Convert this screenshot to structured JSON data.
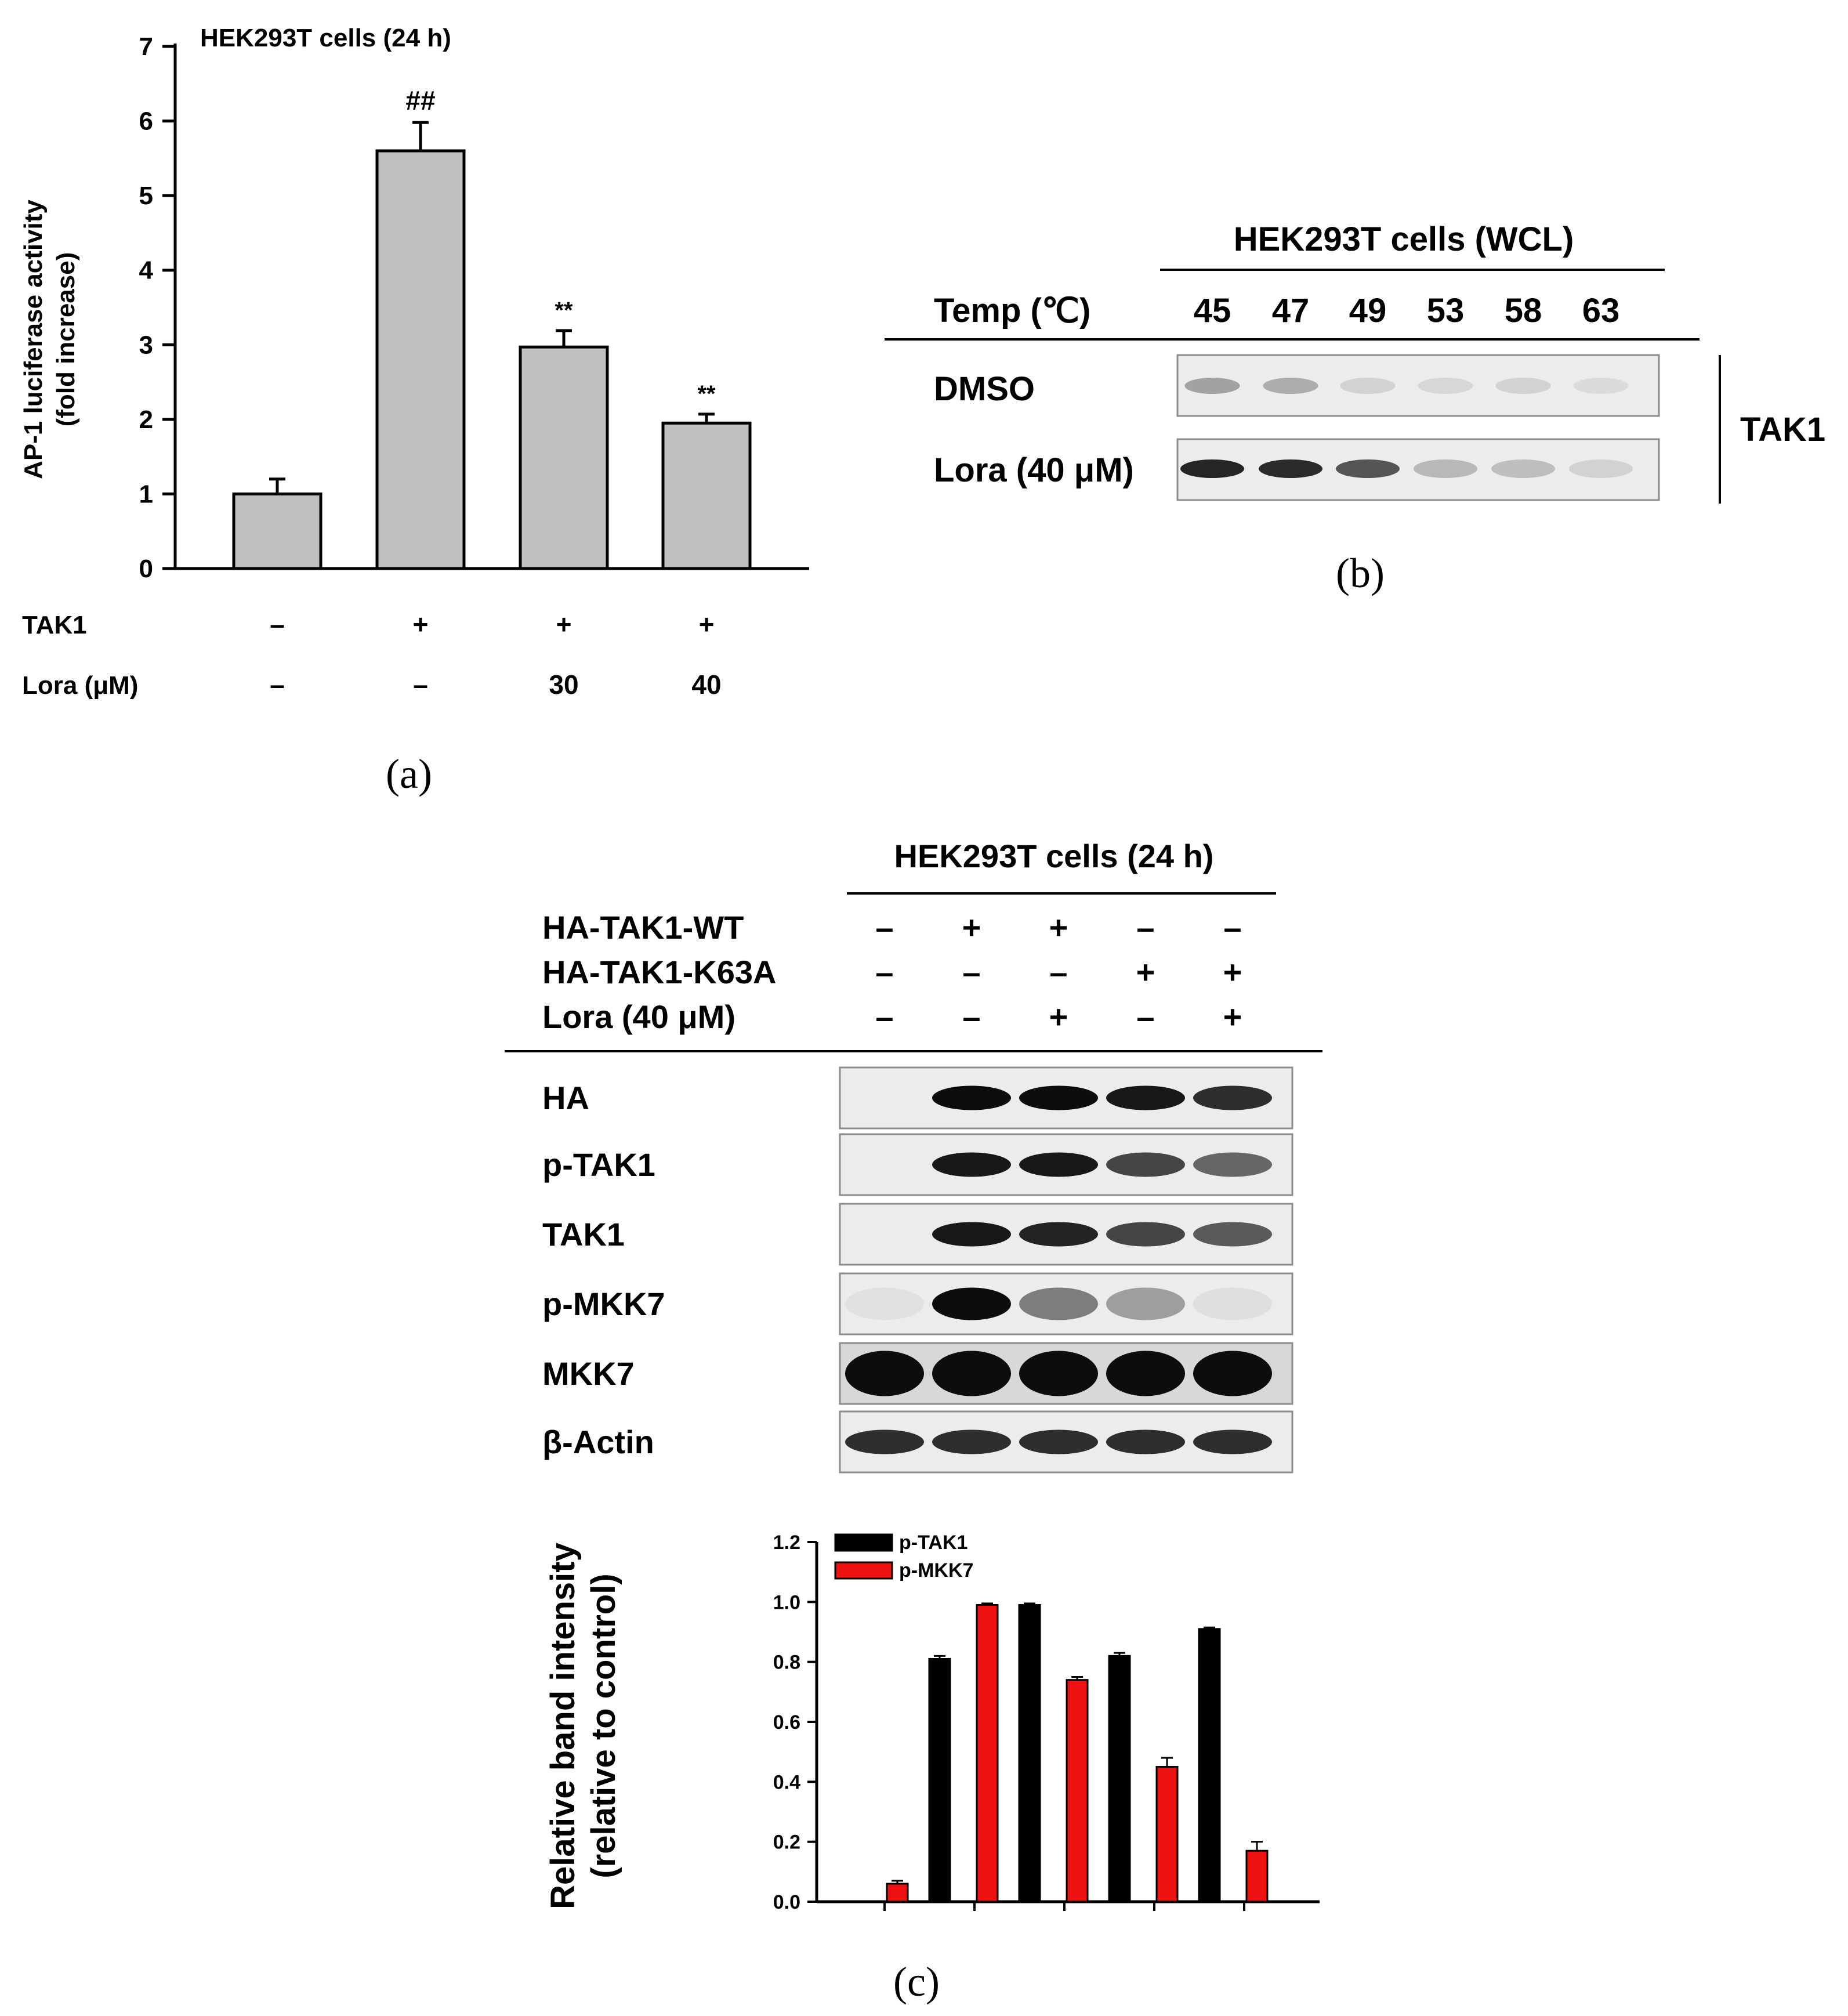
{
  "colors": {
    "bar_gray": "#c0c0c0",
    "series_black": "#000000",
    "series_red": "#ee1111"
  },
  "panel_a": {
    "label": "(a)",
    "title": "HEK293T cells (24 h)",
    "ylabel_line1": "AP-1 luciferase activity",
    "ylabel_line2": "(fold increase)",
    "row_labels": {
      "tak1": "TAK1",
      "lora": "Lora (μM)"
    },
    "tak1_values": [
      "–",
      "+",
      "+",
      "+"
    ],
    "lora_values": [
      "–",
      "–",
      "30",
      "40"
    ]
  },
  "panel_b": {
    "label": "(b)",
    "title": "HEK293T cells (WCL)",
    "temp_label": "Temp (℃)",
    "temps": [
      "45",
      "47",
      "49",
      "53",
      "58",
      "63"
    ],
    "row_dmso": "DMSO",
    "row_lora": "Lora (40 μM)",
    "protein": "TAK1",
    "band_intensity_dmso": [
      0.35,
      0.3,
      0.12,
      0.1,
      0.12,
      0.08
    ],
    "band_intensity_lora": [
      0.95,
      0.92,
      0.72,
      0.25,
      0.22,
      0.12
    ]
  },
  "panel_c": {
    "label": "(c)",
    "title": "HEK293T cells (24 h)",
    "conditions": [
      {
        "label": "HA-TAK1-WT",
        "values": [
          "–",
          "+",
          "+",
          "–",
          "–"
        ]
      },
      {
        "label": "HA-TAK1-K63A",
        "values": [
          "–",
          "–",
          "–",
          "+",
          "+"
        ]
      },
      {
        "label": "Lora (40 μM)",
        "values": [
          "–",
          "–",
          "+",
          "–",
          "+"
        ]
      }
    ],
    "blots": [
      {
        "label": "HA",
        "bands": [
          0,
          1,
          1,
          0.95,
          0.85
        ]
      },
      {
        "label": "p-TAK1",
        "bands": [
          0,
          0.95,
          0.95,
          0.75,
          0.6
        ]
      },
      {
        "label": "TAK1",
        "bands": [
          0,
          0.95,
          0.9,
          0.75,
          0.65
        ]
      },
      {
        "label": "p-MKK7",
        "bands": [
          0.05,
          1,
          0.5,
          0.35,
          0.06
        ]
      },
      {
        "label": "MKK7",
        "bands": [
          1,
          1,
          1,
          1,
          1
        ]
      },
      {
        "label": "β-Actin",
        "bands": [
          0.85,
          0.85,
          0.85,
          0.85,
          0.85
        ]
      }
    ]
  },
  "chart_data": [
    {
      "type": "bar",
      "panel": "a",
      "title": "HEK293T cells (24 h)",
      "ylabel": "AP-1 luciferase activity (fold increase)",
      "ylim": [
        0,
        7
      ],
      "yticks": [
        0,
        1,
        2,
        3,
        4,
        5,
        6,
        7
      ],
      "values": [
        1.0,
        5.6,
        2.97,
        1.95
      ],
      "errors": [
        0.2,
        0.38,
        0.22,
        0.12
      ],
      "annotations": [
        "",
        "##",
        "**",
        "**"
      ]
    },
    {
      "type": "bar",
      "panel": "c",
      "ylabel": "Relative band intensity (relative to control)",
      "ylim": [
        0,
        1.2
      ],
      "yticks": [
        "0.0",
        "0.2",
        "0.4",
        "0.6",
        "0.8",
        "1.0",
        "1.2"
      ],
      "series": [
        {
          "name": "p-TAK1",
          "values": [
            0,
            0.81,
            0.99,
            0.82,
            0.91
          ],
          "errors": [
            0,
            0.01,
            0.005,
            0.01,
            0.005
          ]
        },
        {
          "name": "p-MKK7",
          "values": [
            0.06,
            0.99,
            0.74,
            0.45,
            0.17
          ],
          "errors": [
            0.01,
            0.005,
            0.01,
            0.03,
            0.03
          ]
        }
      ]
    }
  ]
}
